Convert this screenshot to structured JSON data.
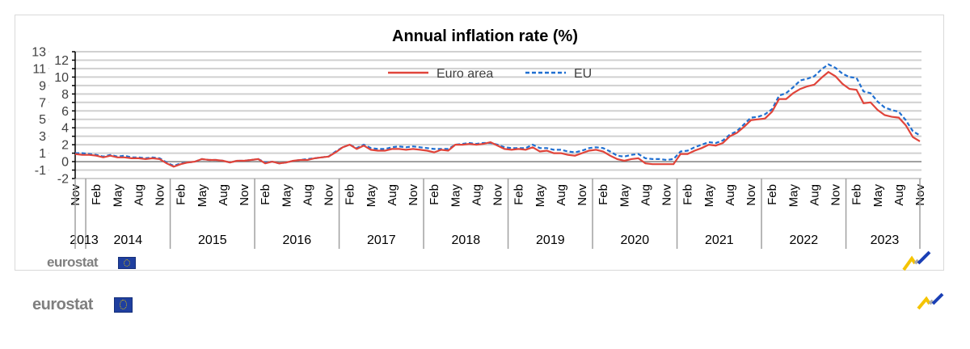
{
  "chart_data": {
    "type": "line",
    "title": "Annual inflation rate (%)",
    "xlabel": "",
    "ylabel": "",
    "ylim": [
      -2,
      13
    ],
    "yticks": [
      -2,
      -1,
      0,
      1,
      2,
      3,
      4,
      5,
      6,
      7,
      8,
      9,
      10,
      11,
      12,
      13
    ],
    "grid": true,
    "legend_position": "top-center",
    "x_start": "2013-11",
    "x_end": "2023-11",
    "month_tick_labels": [
      "Nov",
      "Feb",
      "May",
      "Aug"
    ],
    "year_labels": [
      "2013",
      "2014",
      "2015",
      "2016",
      "2017",
      "2018",
      "2019",
      "2020",
      "2021",
      "2022",
      "2023"
    ],
    "series": [
      {
        "name": "Euro area",
        "color": "#e0443a",
        "style": "solid",
        "values": [
          0.9,
          0.8,
          0.8,
          0.7,
          0.5,
          0.7,
          0.5,
          0.5,
          0.4,
          0.4,
          0.3,
          0.4,
          0.3,
          -0.2,
          -0.6,
          -0.3,
          -0.1,
          0.0,
          0.3,
          0.2,
          0.2,
          0.1,
          -0.1,
          0.1,
          0.1,
          0.2,
          0.3,
          -0.2,
          0.0,
          -0.2,
          -0.1,
          0.1,
          0.2,
          0.2,
          0.4,
          0.5,
          0.6,
          1.1,
          1.7,
          2.0,
          1.5,
          1.9,
          1.4,
          1.3,
          1.3,
          1.5,
          1.5,
          1.4,
          1.5,
          1.4,
          1.3,
          1.1,
          1.4,
          1.3,
          2.0,
          2.0,
          2.1,
          2.0,
          2.1,
          2.3,
          1.9,
          1.5,
          1.4,
          1.5,
          1.4,
          1.7,
          1.2,
          1.3,
          1.0,
          1.0,
          0.8,
          0.7,
          1.0,
          1.3,
          1.4,
          1.2,
          0.7,
          0.3,
          0.1,
          0.3,
          0.4,
          -0.2,
          -0.3,
          -0.3,
          -0.3,
          -0.3,
          0.9,
          0.9,
          1.3,
          1.6,
          2.0,
          1.9,
          2.2,
          3.0,
          3.4,
          4.1,
          4.9,
          5.0,
          5.1,
          5.9,
          7.4,
          7.4,
          8.1,
          8.6,
          8.9,
          9.1,
          9.9,
          10.6,
          10.1,
          9.2,
          8.6,
          8.5,
          6.9,
          7.0,
          6.1,
          5.5,
          5.3,
          5.2,
          4.3,
          2.9,
          2.4
        ]
      },
      {
        "name": "EU",
        "color": "#1f6fd1",
        "style": "dashed",
        "values": [
          1.0,
          1.0,
          0.9,
          0.8,
          0.6,
          0.8,
          0.6,
          0.7,
          0.5,
          0.5,
          0.4,
          0.5,
          0.4,
          -0.1,
          -0.5,
          -0.2,
          -0.1,
          0.0,
          0.3,
          0.2,
          0.2,
          0.1,
          -0.1,
          0.1,
          0.1,
          0.2,
          0.3,
          -0.1,
          0.0,
          -0.2,
          -0.1,
          0.1,
          0.2,
          0.3,
          0.4,
          0.5,
          0.6,
          1.2,
          1.7,
          2.0,
          1.6,
          2.0,
          1.6,
          1.5,
          1.5,
          1.7,
          1.8,
          1.7,
          1.8,
          1.7,
          1.6,
          1.5,
          1.5,
          1.5,
          2.0,
          2.1,
          2.2,
          2.1,
          2.2,
          2.2,
          2.0,
          1.7,
          1.6,
          1.6,
          1.6,
          2.0,
          1.6,
          1.6,
          1.4,
          1.4,
          1.2,
          1.1,
          1.3,
          1.6,
          1.7,
          1.6,
          1.2,
          0.7,
          0.6,
          0.8,
          0.9,
          0.4,
          0.3,
          0.3,
          0.2,
          0.3,
          1.2,
          1.3,
          1.7,
          2.0,
          2.3,
          2.2,
          2.5,
          3.2,
          3.6,
          4.4,
          5.2,
          5.3,
          5.6,
          6.2,
          7.8,
          8.1,
          8.8,
          9.6,
          9.8,
          10.1,
          10.9,
          11.5,
          11.1,
          10.4,
          10.0,
          9.9,
          8.3,
          8.1,
          7.1,
          6.4,
          6.1,
          5.9,
          4.9,
          3.6,
          3.1
        ]
      }
    ]
  },
  "branding": {
    "logo_text": "eurostat"
  }
}
